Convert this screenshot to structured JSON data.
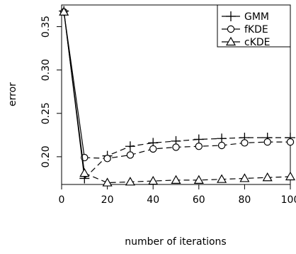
{
  "chart_data": {
    "type": "line",
    "title": "",
    "xlabel": "number of iterations",
    "ylabel": "error",
    "xlim": [
      0,
      100
    ],
    "ylim": [
      0.168,
      0.375
    ],
    "x_ticks": [
      0,
      20,
      40,
      60,
      80,
      100
    ],
    "y_ticks": [
      0.2,
      0.25,
      0.3,
      0.35
    ],
    "x_tick_labels": [
      "0",
      "20",
      "40",
      "60",
      "80",
      "100"
    ],
    "y_tick_labels": [
      "0.20",
      "0.25",
      "0.30",
      "0.35"
    ],
    "grid": false,
    "legend": "top-right",
    "x": [
      1,
      10,
      20,
      30,
      40,
      50,
      60,
      70,
      80,
      90,
      100
    ],
    "series": [
      {
        "name": "GMM",
        "marker": "plus",
        "values": [
          0.368,
          0.175,
          0.201,
          0.212,
          0.216,
          0.218,
          0.22,
          0.221,
          0.222,
          0.222,
          0.222
        ]
      },
      {
        "name": "fKDE",
        "marker": "circle",
        "values": [
          0.367,
          0.199,
          0.198,
          0.202,
          0.209,
          0.211,
          0.212,
          0.213,
          0.216,
          0.217,
          0.217
        ]
      },
      {
        "name": "cKDE",
        "marker": "triangle",
        "values": [
          0.367,
          0.181,
          0.17,
          0.171,
          0.172,
          0.173,
          0.173,
          0.174,
          0.175,
          0.176,
          0.177
        ]
      }
    ]
  }
}
